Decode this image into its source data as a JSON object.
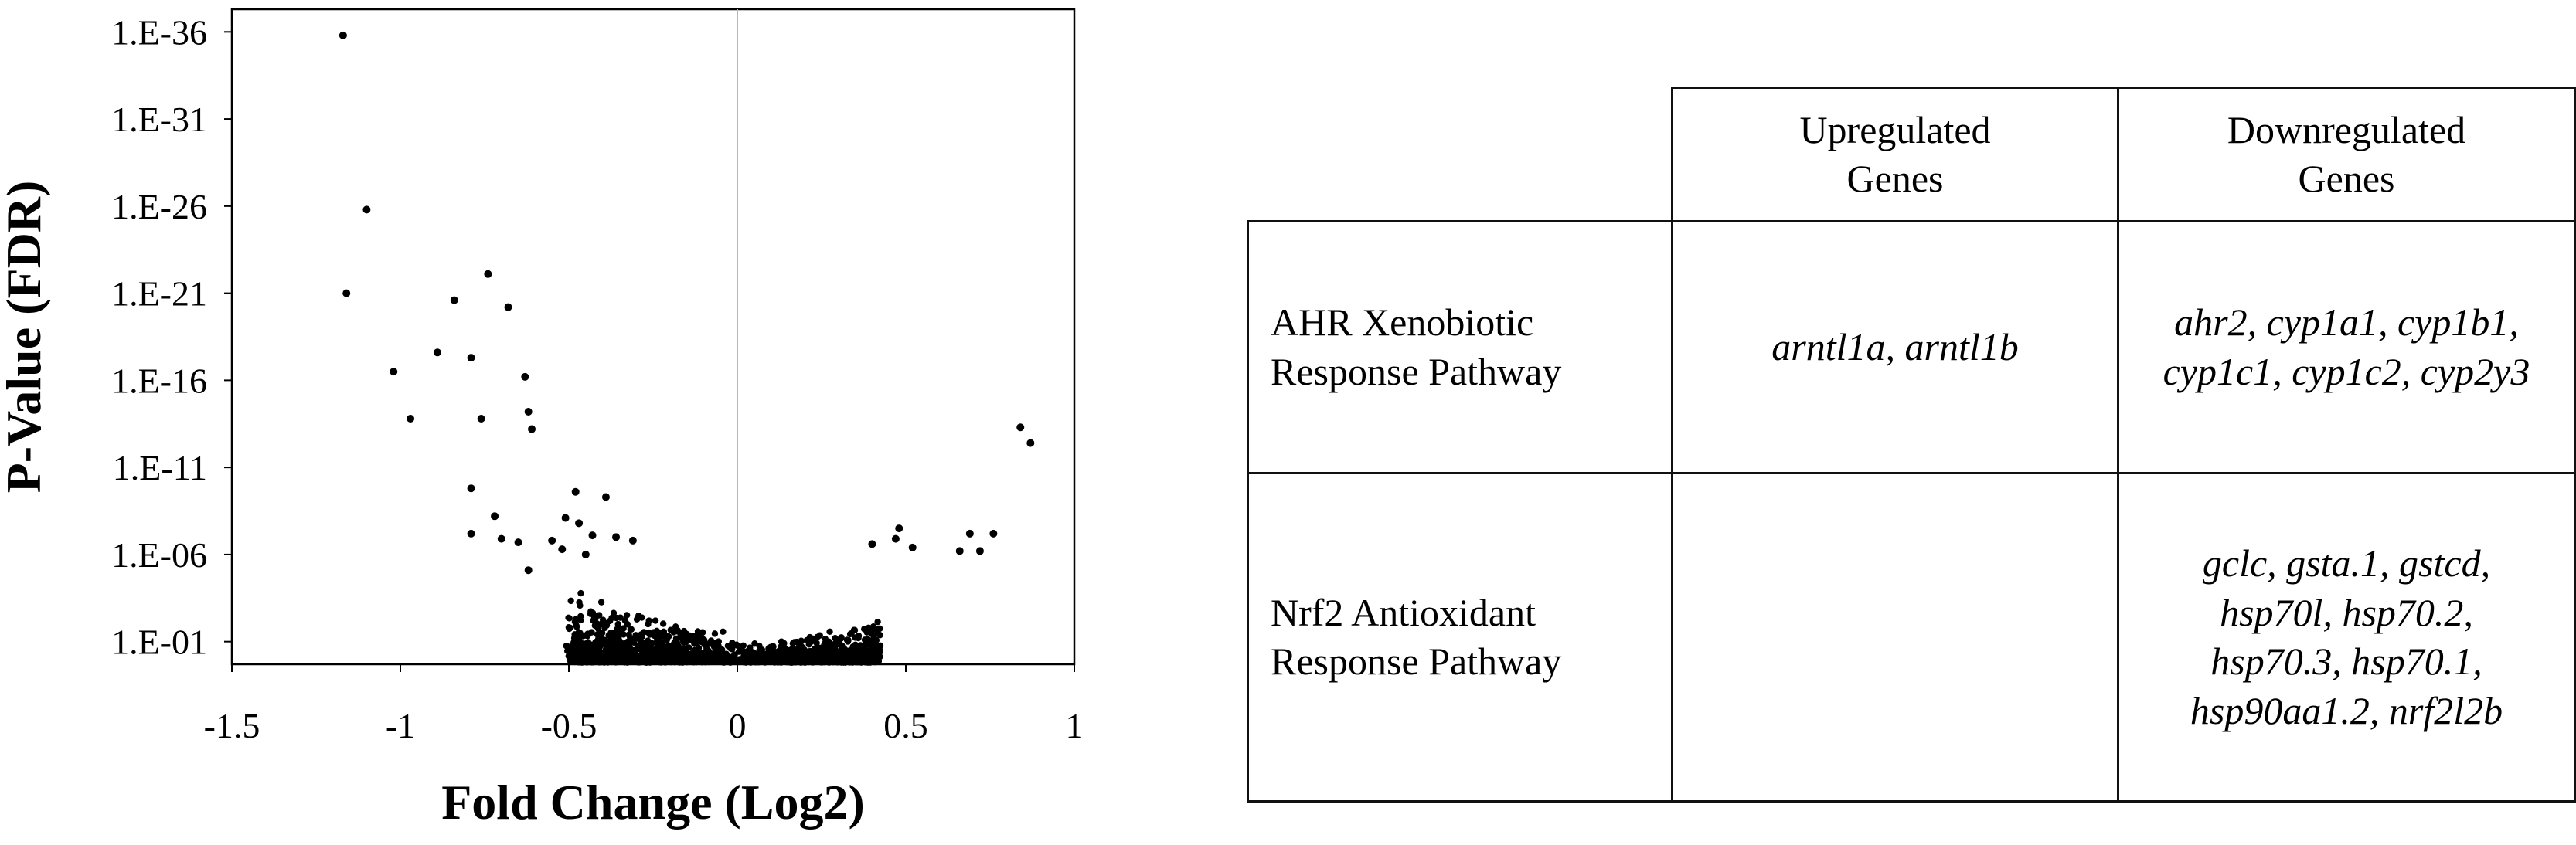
{
  "chart_data": {
    "type": "scatter",
    "title": "",
    "xlabel": "Fold Change (Log2)",
    "ylabel": "P-Value (FDR)",
    "xlim": [
      -1.5,
      1
    ],
    "x_ticks": [
      -1.5,
      -1,
      -0.5,
      0,
      0.5,
      1
    ],
    "x_tick_labels": [
      "-1.5",
      "-1",
      "-0.5",
      "0",
      "0.5",
      "1"
    ],
    "y_scale": "log (inverted)",
    "y_ticks_neglog10": [
      36,
      31,
      26,
      21,
      16,
      11,
      6,
      1
    ],
    "y_tick_labels": [
      "1.E-36",
      "1.E-31",
      "1.E-26",
      "1.E-21",
      "1.E-16",
      "1.E-11",
      "1.E-06",
      "1.E-01"
    ],
    "grid": false,
    "reference_line_x": 0,
    "points_neglog10p": [
      [
        -1.17,
        35.8
      ],
      [
        -1.1,
        25.8
      ],
      [
        -1.16,
        21.0
      ],
      [
        -1.02,
        16.5
      ],
      [
        -0.97,
        13.8
      ],
      [
        -0.74,
        22.1
      ],
      [
        -0.84,
        20.6
      ],
      [
        -0.68,
        20.2
      ],
      [
        -0.89,
        17.6
      ],
      [
        -0.79,
        17.3
      ],
      [
        -0.63,
        16.2
      ],
      [
        -0.76,
        13.8
      ],
      [
        -0.62,
        14.2
      ],
      [
        -0.61,
        13.2
      ],
      [
        -0.79,
        9.8
      ],
      [
        -0.72,
        8.2
      ],
      [
        -0.79,
        7.2
      ],
      [
        -0.7,
        6.9
      ],
      [
        -0.65,
        6.7
      ],
      [
        -0.62,
        5.1
      ],
      [
        -0.48,
        9.6
      ],
      [
        -0.39,
        9.3
      ],
      [
        -0.51,
        8.1
      ],
      [
        -0.47,
        7.8
      ],
      [
        -0.43,
        7.1
      ],
      [
        -0.36,
        7.0
      ],
      [
        -0.55,
        6.8
      ],
      [
        -0.31,
        6.8
      ],
      [
        -0.52,
        6.3
      ],
      [
        -0.45,
        6.0
      ],
      [
        0.48,
        7.5
      ],
      [
        0.47,
        6.9
      ],
      [
        0.52,
        6.4
      ],
      [
        0.4,
        6.6
      ],
      [
        0.69,
        7.2
      ],
      [
        0.76,
        7.2
      ],
      [
        0.72,
        6.2
      ],
      [
        0.66,
        6.2
      ],
      [
        0.84,
        13.3
      ],
      [
        0.87,
        12.4
      ]
    ]
  },
  "table": {
    "headers": [
      "",
      "Upregulated Genes",
      "Downregulated Genes"
    ],
    "rows": [
      {
        "pathway": "AHR Xenobiotic Response Pathway",
        "upregulated": "arntl1a, arntl1b",
        "downregulated": "ahr2, cyp1a1, cyp1b1, cyp1c1, cyp1c2, cyp2y3"
      },
      {
        "pathway": "Nrf2 Antioxidant Response Pathway",
        "upregulated": "",
        "downregulated": "gclc, gsta.1, gstcd, hsp70l, hsp70.2, hsp70.3, hsp70.1, hsp90aa1.2, nrf2l2b"
      }
    ]
  }
}
